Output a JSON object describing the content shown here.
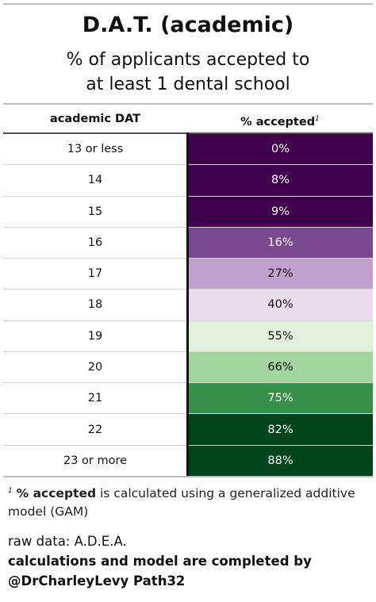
{
  "title": "D.A.T. (academic)",
  "subtitle_line1": "% of applicants accepted to",
  "subtitle_line2": "at least 1 dental school",
  "columns": {
    "left": "academic DAT",
    "right": "% accepted",
    "right_footnote_mark": "1"
  },
  "footnote": {
    "mark": "1",
    "bold": "% accepted",
    "text": "is calculated using a generalized additive model (GAM)"
  },
  "source": "raw data: A.D.E.A.",
  "credit_line1": "calculations and model are completed by",
  "credit_line2": "@DrCharleyLevy Path32",
  "chart_data": {
    "type": "table",
    "title": "D.A.T. (academic)",
    "subtitle": "% of applicants accepted to at least 1 dental school",
    "columns": [
      "academic DAT",
      "% accepted"
    ],
    "rows": [
      {
        "label": "13 or less",
        "value": "0%",
        "percent": 0,
        "color": "#40004b",
        "text_color": "#ffffff"
      },
      {
        "label": "14",
        "value": "8%",
        "percent": 8,
        "color": "#40004b",
        "text_color": "#ffffff"
      },
      {
        "label": "15",
        "value": "9%",
        "percent": 9,
        "color": "#40004b",
        "text_color": "#ffffff"
      },
      {
        "label": "16",
        "value": "16%",
        "percent": 16,
        "color": "#7b478f",
        "text_color": "#ffffff"
      },
      {
        "label": "17",
        "value": "27%",
        "percent": 27,
        "color": "#c0a0cd",
        "text_color": "#111111"
      },
      {
        "label": "18",
        "value": "40%",
        "percent": 40,
        "color": "#eadcec",
        "text_color": "#111111"
      },
      {
        "label": "19",
        "value": "55%",
        "percent": 55,
        "color": "#e0f0db",
        "text_color": "#111111"
      },
      {
        "label": "20",
        "value": "66%",
        "percent": 66,
        "color": "#a2d59e",
        "text_color": "#111111"
      },
      {
        "label": "21",
        "value": "75%",
        "percent": 75,
        "color": "#37904a",
        "text_color": "#ffffff"
      },
      {
        "label": "22",
        "value": "82%",
        "percent": 82,
        "color": "#00441b",
        "text_color": "#ffffff"
      },
      {
        "label": "23 or more",
        "value": "88%",
        "percent": 88,
        "color": "#00441b",
        "text_color": "#ffffff"
      }
    ]
  }
}
